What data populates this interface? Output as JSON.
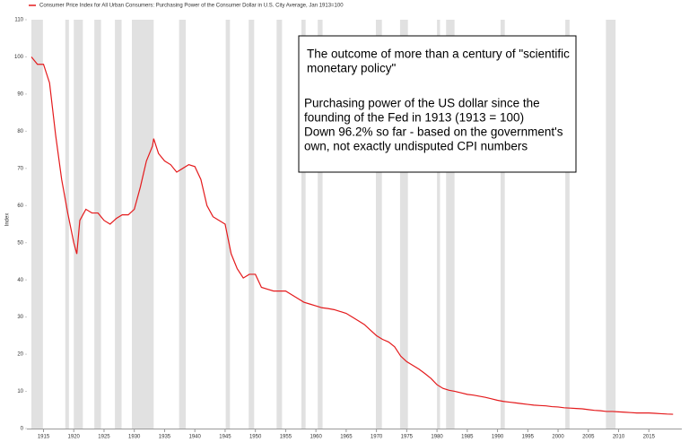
{
  "chart_data": {
    "type": "line",
    "legend": "top-left",
    "ylabel": "Index",
    "xlim": [
      1913,
      2020
    ],
    "ylim": [
      0,
      110
    ],
    "xticks": [
      1915,
      1920,
      1925,
      1930,
      1935,
      1940,
      1945,
      1950,
      1955,
      1960,
      1965,
      1970,
      1975,
      1980,
      1985,
      1990,
      1995,
      2000,
      2005,
      2010,
      2015
    ],
    "yticks": [
      0,
      10,
      20,
      30,
      40,
      50,
      60,
      70,
      80,
      90,
      100,
      110
    ],
    "grid": false,
    "recession_color": "#e1e1e1",
    "recessions": [
      [
        1913,
        1914.9
      ],
      [
        1918.6,
        1919.2
      ],
      [
        1920,
        1921.5
      ],
      [
        1923.4,
        1924.5
      ],
      [
        1926.8,
        1927.9
      ],
      [
        1929.6,
        1933.2
      ],
      [
        1937.4,
        1938.5
      ],
      [
        1945.1,
        1945.8
      ],
      [
        1948.9,
        1949.8
      ],
      [
        1953.5,
        1954.4
      ],
      [
        1957.6,
        1958.3
      ],
      [
        1960.3,
        1961.1
      ],
      [
        1969.9,
        1970.9
      ],
      [
        1973.9,
        1975.2
      ],
      [
        1980,
        1980.5
      ],
      [
        1981.5,
        1982.9
      ],
      [
        1990.5,
        1991.2
      ],
      [
        2001.2,
        2001.9
      ],
      [
        2007.9,
        2009.5
      ]
    ],
    "annotation": {
      "heading": [
        "The outcome of more than a century of \"scientific",
        "monetary policy\""
      ],
      "body": [
        "Purchasing power of the US dollar since the",
        "founding of the Fed in 1913 (1913 = 100)",
        "Down 96.2% so far - based on the government's",
        "own, not exactly undisputed CPI numbers"
      ]
    },
    "series": [
      {
        "name": "Consumer Price Index for All Urban Consumers: Purchasing Power of the Consumer Dollar in U.S. City Average, Jan 1913=100",
        "color": "#e41a1c",
        "x": [
          1913,
          1914,
          1915,
          1916,
          1917,
          1918,
          1919,
          1920,
          1920.5,
          1921,
          1922,
          1923,
          1924,
          1925,
          1926,
          1927,
          1928,
          1929,
          1930,
          1931,
          1932,
          1933,
          1933.2,
          1934,
          1935,
          1936,
          1937,
          1938,
          1939,
          1940,
          1941,
          1942,
          1943,
          1944,
          1945,
          1946,
          1947,
          1948,
          1949,
          1950,
          1951,
          1952,
          1953,
          1954,
          1955,
          1956,
          1957,
          1958,
          1959,
          1960,
          1961,
          1962,
          1963,
          1964,
          1965,
          1966,
          1967,
          1968,
          1969,
          1970,
          1971,
          1972,
          1973,
          1974,
          1975,
          1976,
          1977,
          1978,
          1979,
          1980,
          1981,
          1982,
          1983,
          1984,
          1985,
          1986,
          1987,
          1988,
          1989,
          1990,
          1991,
          1992,
          1993,
          1994,
          1995,
          1996,
          1997,
          1998,
          1999,
          2000,
          2001,
          2002,
          2003,
          2004,
          2005,
          2006,
          2007,
          2008,
          2009,
          2010,
          2011,
          2012,
          2013,
          2014,
          2015,
          2016,
          2017,
          2018,
          2019
        ],
        "values": [
          100,
          98,
          98,
          93,
          79,
          67,
          58,
          50,
          47,
          56,
          59,
          58,
          58,
          56,
          55,
          56.5,
          57.5,
          57.5,
          59,
          65,
          72,
          76,
          78,
          74,
          72,
          71,
          69,
          70,
          71,
          70.5,
          67,
          60,
          57,
          56,
          55,
          47,
          43,
          40.5,
          41.5,
          41.5,
          38,
          37.5,
          37,
          37,
          37,
          36,
          35,
          34,
          33.5,
          33,
          32.5,
          32.3,
          32,
          31.5,
          31,
          30,
          29,
          28,
          26.5,
          25,
          24,
          23.3,
          22,
          19.5,
          18,
          17,
          16,
          14.8,
          13.5,
          11.8,
          10.8,
          10.3,
          10,
          9.6,
          9.2,
          9,
          8.7,
          8.4,
          8,
          7.6,
          7.3,
          7.1,
          6.9,
          6.7,
          6.5,
          6.3,
          6.2,
          6.1,
          5.9,
          5.8,
          5.6,
          5.5,
          5.4,
          5.3,
          5.1,
          4.9,
          4.8,
          4.6,
          4.6,
          4.5,
          4.4,
          4.3,
          4.2,
          4.2,
          4.2,
          4.1,
          4.0,
          3.9,
          3.85
        ]
      }
    ]
  }
}
